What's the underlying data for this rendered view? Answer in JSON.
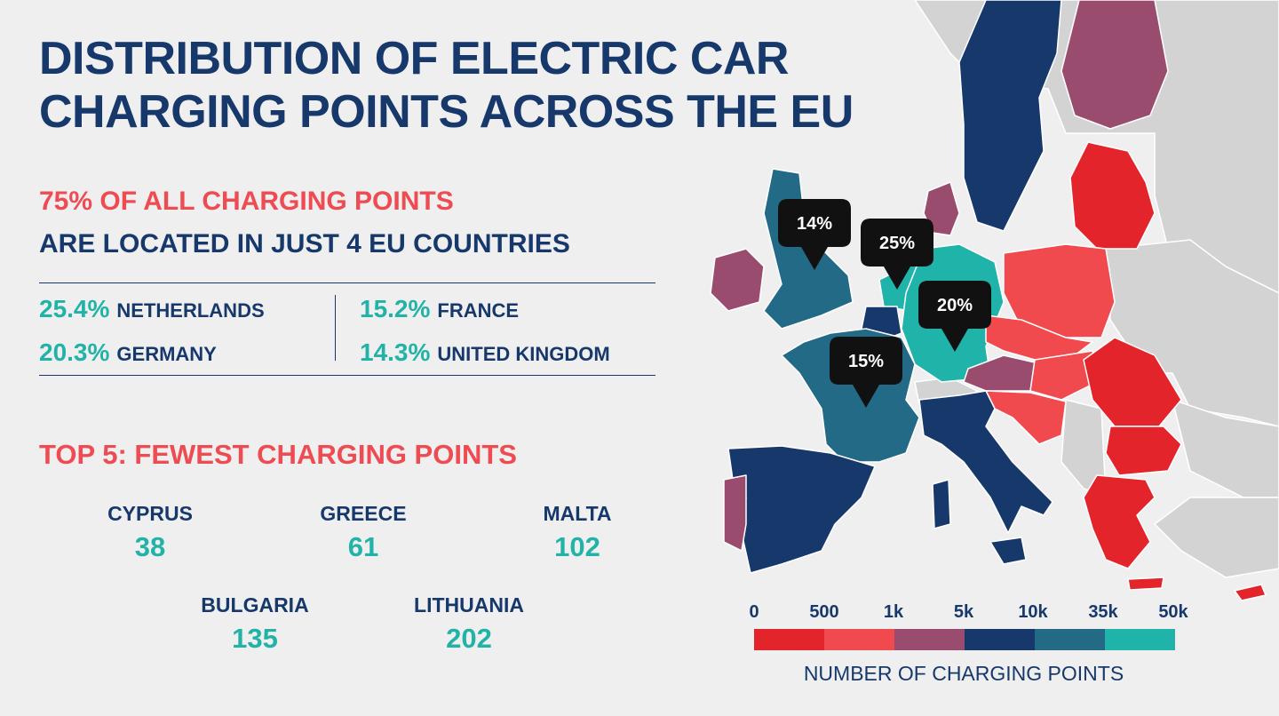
{
  "title_line1": "DISTRIBUTION OF ELECTRIC CAR",
  "title_line2": "CHARGING POINTS ACROSS THE EU",
  "stat_line1": "75% OF ALL CHARGING POINTS",
  "stat_line2": "ARE LOCATED IN JUST 4 EU COUNTRIES",
  "top_shares": [
    {
      "pct": "25.4%",
      "country": "NETHERLANDS"
    },
    {
      "pct": "20.3%",
      "country": "GERMANY"
    },
    {
      "pct": "15.2%",
      "country": "FRANCE"
    },
    {
      "pct": "14.3%",
      "country": "UNITED KINGDOM"
    }
  ],
  "fewest_heading": "TOP 5: FEWEST CHARGING POINTS",
  "fewest": [
    {
      "country": "CYPRUS",
      "value": "38"
    },
    {
      "country": "GREECE",
      "value": "61"
    },
    {
      "country": "MALTA",
      "value": "102"
    },
    {
      "country": "BULGARIA",
      "value": "135"
    },
    {
      "country": "LITHUANIA",
      "value": "202"
    }
  ],
  "map_callouts": [
    {
      "country": "United Kingdom",
      "label": "14%"
    },
    {
      "country": "Netherlands",
      "label": "25%"
    },
    {
      "country": "Germany",
      "label": "20%"
    },
    {
      "country": "France",
      "label": "15%"
    }
  ],
  "legend": {
    "ticks": [
      "0",
      "500",
      "1k",
      "5k",
      "10k",
      "35k",
      "50k"
    ],
    "colors": [
      "#e3242b",
      "#f04a4f",
      "#9a4c6e",
      "#17386b",
      "#226a85",
      "#1fb3aa"
    ],
    "caption": "NUMBER OF CHARGING POINTS"
  },
  "colors": {
    "title": "#17386b",
    "accent_red": "#ee4b52",
    "accent_teal": "#21b3a7",
    "non_eu_land": "#d3d3d3",
    "sea": "#efefef"
  }
}
